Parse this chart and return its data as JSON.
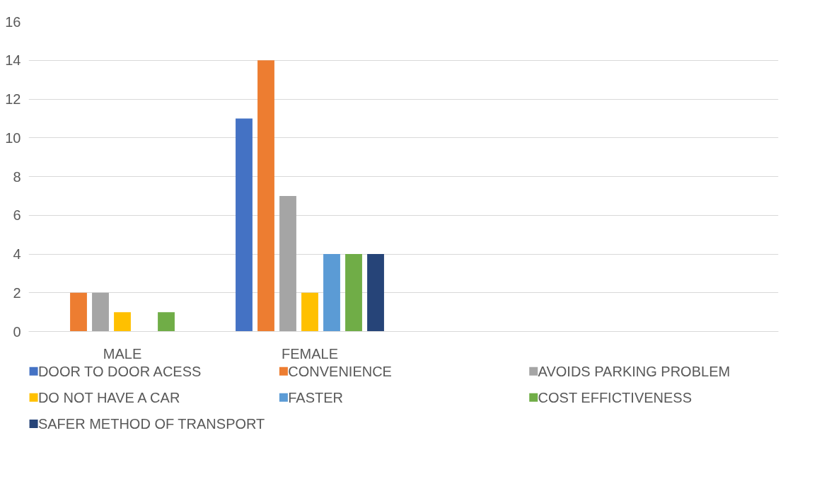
{
  "chart_data": {
    "type": "bar",
    "categories": [
      "MALE",
      "FEMALE",
      null,
      null
    ],
    "series": [
      {
        "name": "DOOR TO DOOR ACESS",
        "color": "#4472c4",
        "values": [
          0,
          11,
          null,
          null
        ]
      },
      {
        "name": "CONVENIENCE",
        "color": "#ed7d31",
        "values": [
          2,
          14,
          null,
          null
        ]
      },
      {
        "name": "AVOIDS PARKING PROBLEM",
        "color": "#a5a5a5",
        "values": [
          2,
          7,
          null,
          null
        ]
      },
      {
        "name": "DO NOT HAVE A CAR",
        "color": "#ffc000",
        "values": [
          1,
          2,
          null,
          null
        ]
      },
      {
        "name": "FASTER",
        "color": "#5b9bd5",
        "values": [
          0,
          4,
          null,
          null
        ]
      },
      {
        "name": "COST EFFICTIVENESS",
        "color": "#70ad47",
        "values": [
          1,
          4,
          null,
          null
        ]
      },
      {
        "name": "SAFER METHOD OF TRANSPORT",
        "color": "#264478",
        "values": [
          0,
          4,
          null,
          null
        ]
      }
    ],
    "ylim": [
      0,
      16
    ],
    "yticks": [
      0,
      2,
      4,
      6,
      8,
      10,
      12,
      14,
      16
    ],
    "grid": "y",
    "legend": "bottom"
  }
}
